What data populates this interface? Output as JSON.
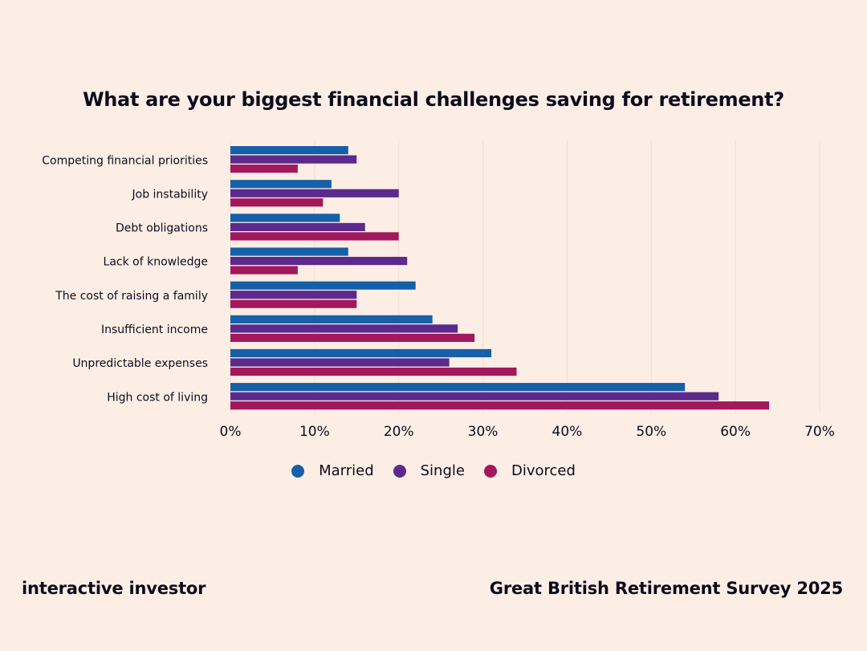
{
  "title": "What are your biggest financial challenges saving for retirement?",
  "footer": {
    "brand": "interactive investor",
    "source": "Great British Retirement Survey 2025"
  },
  "chart_data": {
    "type": "bar",
    "orientation": "horizontal",
    "title": "What are your biggest financial challenges saving for retirement?",
    "categories": [
      "Competing financial priorities",
      "Job instability",
      "Debt obligations",
      "Lack of knowledge",
      "The cost of raising a family",
      "Insufficient income",
      "Unpredictable expenses",
      "High cost of living"
    ],
    "series": [
      {
        "name": "Married",
        "color": "#1560a8",
        "values": [
          14,
          12,
          13,
          14,
          22,
          24,
          31,
          54
        ]
      },
      {
        "name": "Single",
        "color": "#5b2a8c",
        "values": [
          15,
          20,
          16,
          21,
          15,
          27,
          26,
          58
        ]
      },
      {
        "name": "Divorced",
        "color": "#a2185c",
        "values": [
          8,
          11,
          20,
          8,
          15,
          29,
          34,
          64
        ]
      }
    ],
    "xlim": [
      0,
      70
    ],
    "xticks": [
      "0%",
      "10%",
      "20%",
      "30%",
      "40%",
      "50%",
      "60%",
      "70%"
    ],
    "grid": true,
    "legend_position": "bottom"
  }
}
